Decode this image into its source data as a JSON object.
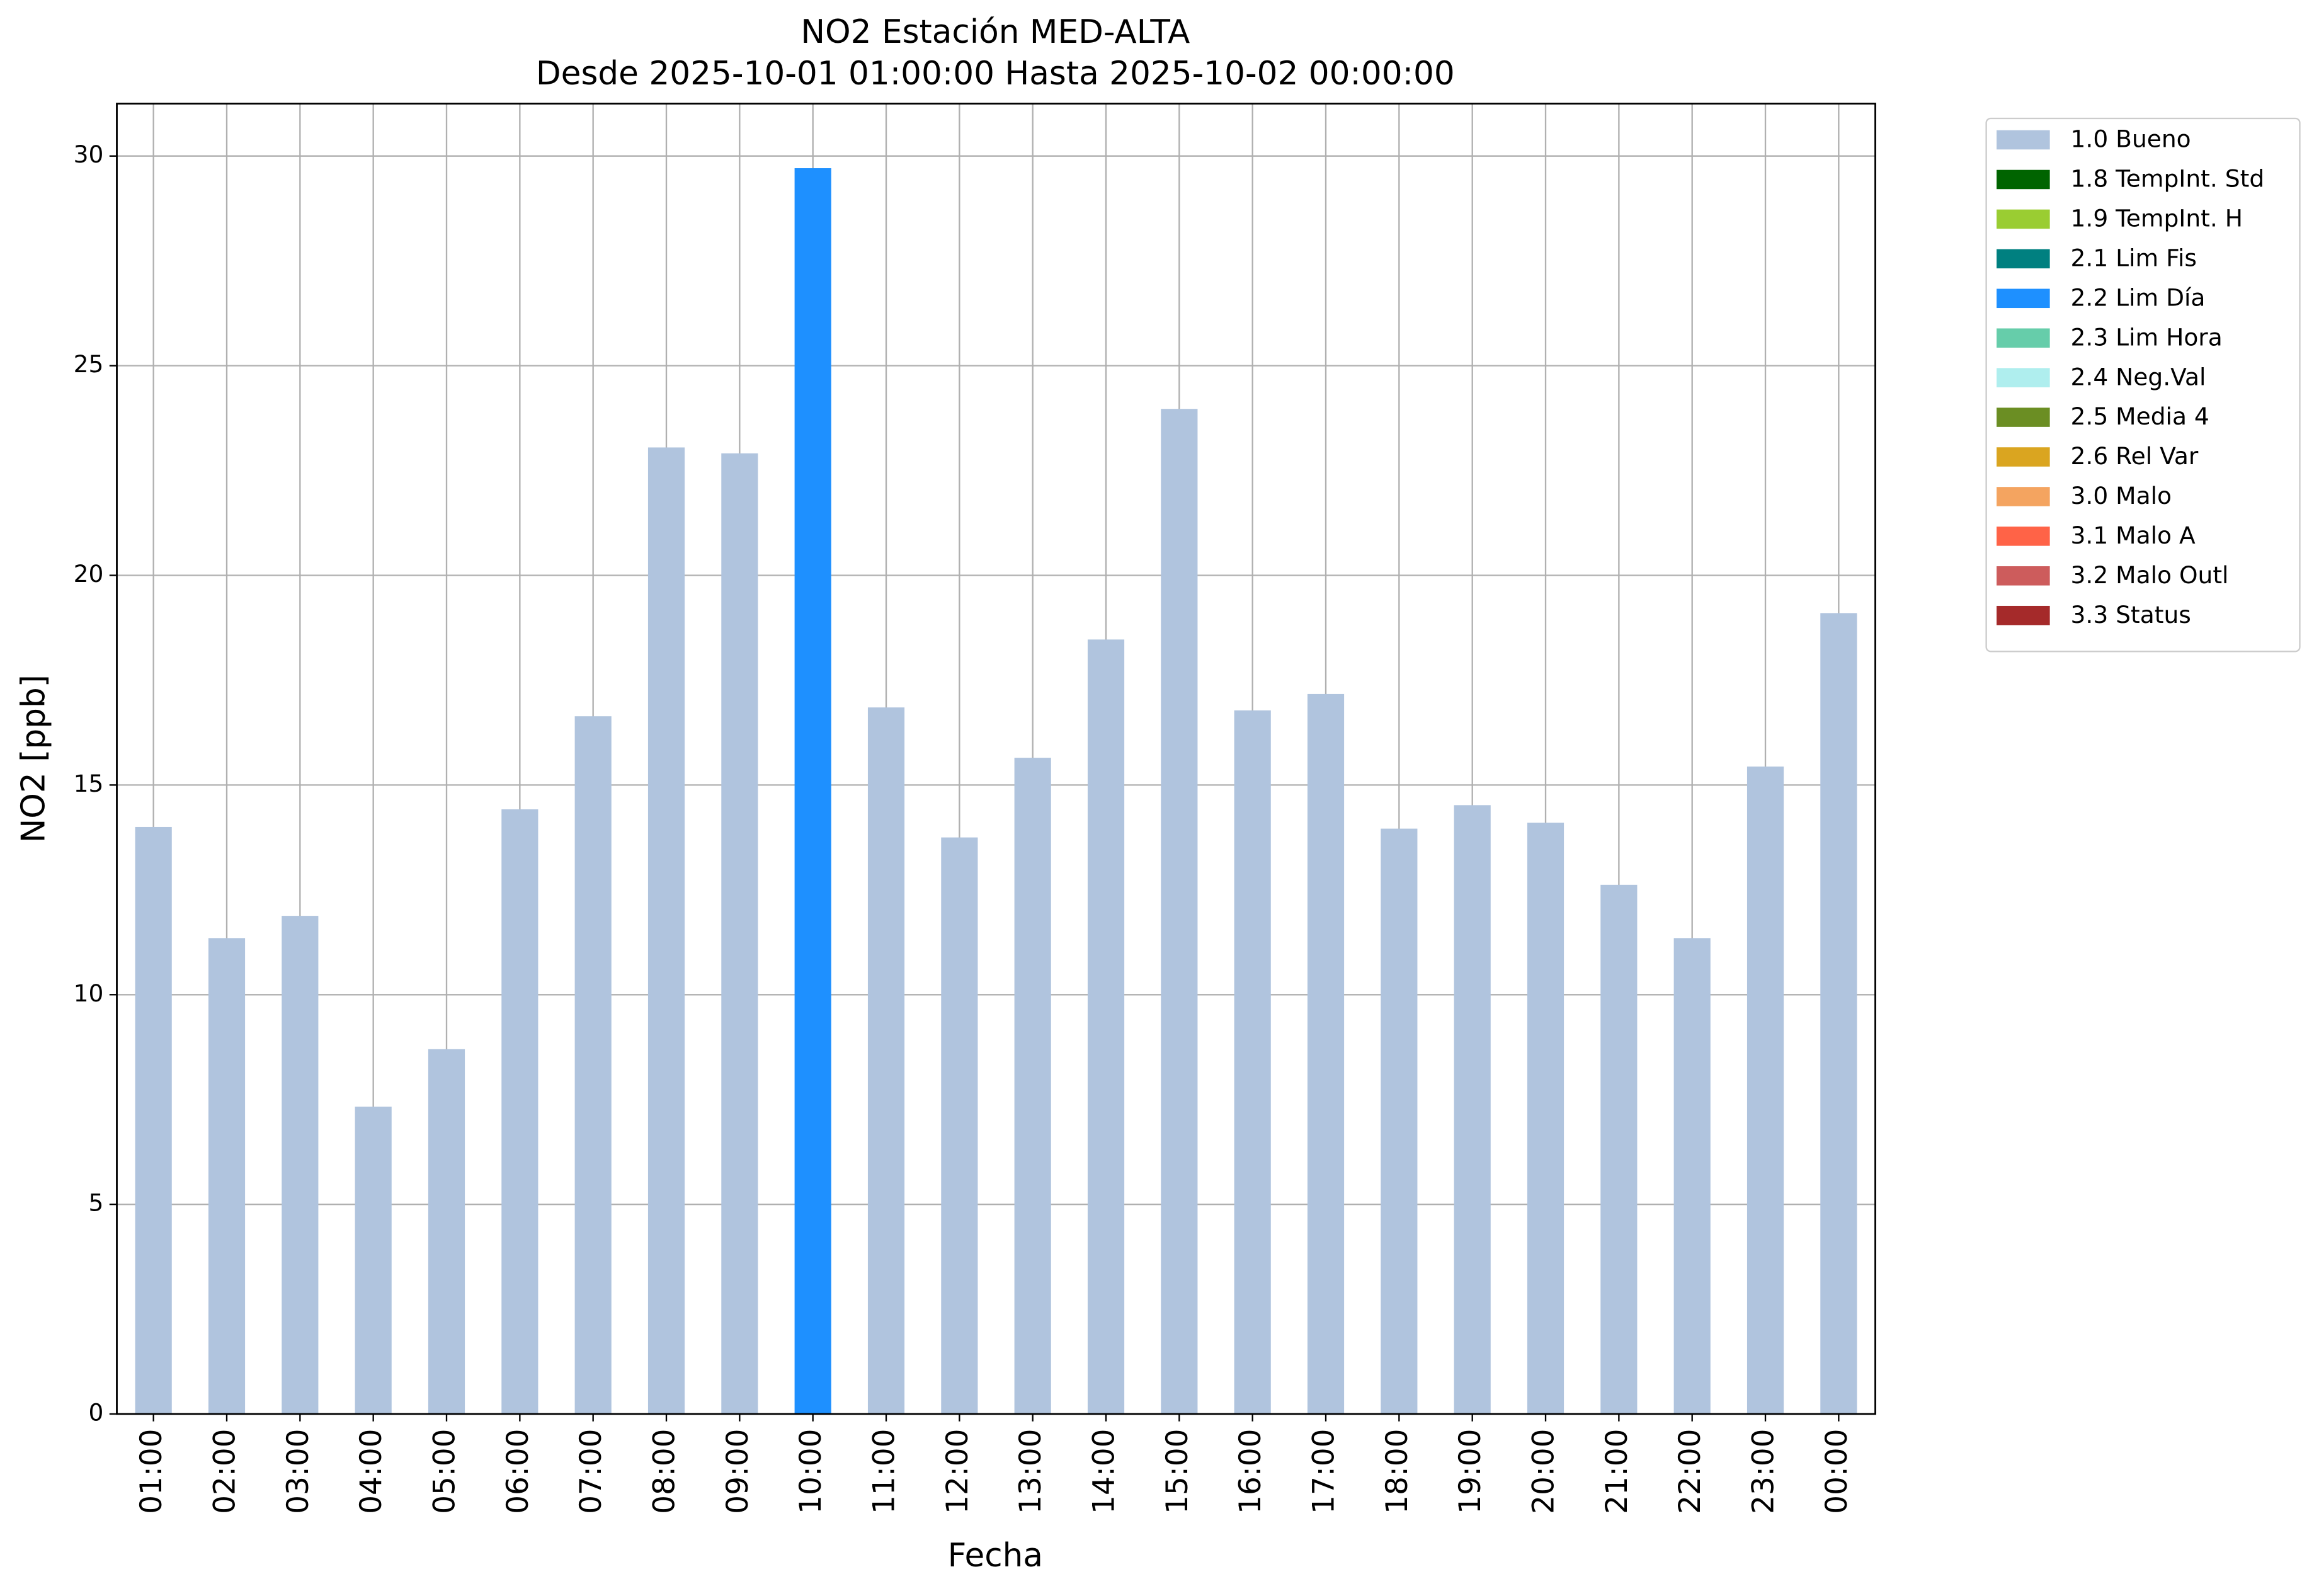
{
  "chart_data": {
    "type": "bar",
    "stacked": true,
    "title": "NO2 Estación MED-ALTA",
    "subtitle": "Desde 2025-10-01 01:00:00 Hasta 2025-10-02 00:00:00",
    "xlabel": "Fecha",
    "ylabel": "NO2 [ppb]",
    "categories": [
      "01:00",
      "02:00",
      "03:00",
      "04:00",
      "05:00",
      "06:00",
      "07:00",
      "08:00",
      "09:00",
      "10:00",
      "11:00",
      "12:00",
      "13:00",
      "14:00",
      "15:00",
      "16:00",
      "17:00",
      "18:00",
      "19:00",
      "20:00",
      "21:00",
      "22:00",
      "23:00",
      "00:00"
    ],
    "series": [
      {
        "name": "1.0 Bueno",
        "color": "#b0c4de",
        "values": [
          14.0,
          11.35,
          11.88,
          7.33,
          8.7,
          14.42,
          16.64,
          23.05,
          22.91,
          null,
          16.85,
          13.75,
          15.65,
          18.47,
          23.97,
          16.78,
          17.17,
          13.96,
          14.52,
          14.1,
          12.62,
          11.35,
          15.44,
          19.1
        ]
      },
      {
        "name": "1.8 TempInt. Std",
        "color": "#006400",
        "values": [
          null,
          null,
          null,
          null,
          null,
          null,
          null,
          null,
          null,
          null,
          null,
          null,
          null,
          null,
          null,
          null,
          null,
          null,
          null,
          null,
          null,
          null,
          null,
          null
        ]
      },
      {
        "name": "1.9 TempInt. H",
        "color": "#9acd32",
        "values": [
          null,
          null,
          null,
          null,
          null,
          null,
          null,
          null,
          null,
          null,
          null,
          null,
          null,
          null,
          null,
          null,
          null,
          null,
          null,
          null,
          null,
          null,
          null,
          null
        ]
      },
      {
        "name": "2.1 Lim Fis",
        "color": "#008080",
        "values": [
          null,
          null,
          null,
          null,
          null,
          null,
          null,
          null,
          null,
          null,
          null,
          null,
          null,
          null,
          null,
          null,
          null,
          null,
          null,
          null,
          null,
          null,
          null,
          null
        ]
      },
      {
        "name": "2.2 Lim Día",
        "color": "#1e90ff",
        "values": [
          null,
          null,
          null,
          null,
          null,
          null,
          null,
          null,
          null,
          29.71,
          null,
          null,
          null,
          null,
          null,
          null,
          null,
          null,
          null,
          null,
          null,
          null,
          null,
          null
        ]
      },
      {
        "name": "2.3 Lim Hora",
        "color": "#66cdaa",
        "values": [
          null,
          null,
          null,
          null,
          null,
          null,
          null,
          null,
          null,
          null,
          null,
          null,
          null,
          null,
          null,
          null,
          null,
          null,
          null,
          null,
          null,
          null,
          null,
          null
        ]
      },
      {
        "name": "2.4 Neg.Val",
        "color": "#afeeee",
        "values": [
          null,
          null,
          null,
          null,
          null,
          null,
          null,
          null,
          null,
          null,
          null,
          null,
          null,
          null,
          null,
          null,
          null,
          null,
          null,
          null,
          null,
          null,
          null,
          null
        ]
      },
      {
        "name": "2.5 Media 4",
        "color": "#6b8e23",
        "values": [
          null,
          null,
          null,
          null,
          null,
          null,
          null,
          null,
          null,
          null,
          null,
          null,
          null,
          null,
          null,
          null,
          null,
          null,
          null,
          null,
          null,
          null,
          null,
          null
        ]
      },
      {
        "name": "2.6 Rel Var",
        "color": "#daa520",
        "values": [
          null,
          null,
          null,
          null,
          null,
          null,
          null,
          null,
          null,
          null,
          null,
          null,
          null,
          null,
          null,
          null,
          null,
          null,
          null,
          null,
          null,
          null,
          null,
          null
        ]
      },
      {
        "name": "3.0 Malo",
        "color": "#f4a460",
        "values": [
          null,
          null,
          null,
          null,
          null,
          null,
          null,
          null,
          null,
          null,
          null,
          null,
          null,
          null,
          null,
          null,
          null,
          null,
          null,
          null,
          null,
          null,
          null,
          null
        ]
      },
      {
        "name": "3.1 Malo A",
        "color": "#ff6347",
        "values": [
          null,
          null,
          null,
          null,
          null,
          null,
          null,
          null,
          null,
          null,
          null,
          null,
          null,
          null,
          null,
          null,
          null,
          null,
          null,
          null,
          null,
          null,
          null,
          null
        ]
      },
      {
        "name": "3.2 Malo Outl",
        "color": "#cd5c5c",
        "values": [
          null,
          null,
          null,
          null,
          null,
          null,
          null,
          null,
          null,
          null,
          null,
          null,
          null,
          null,
          null,
          null,
          null,
          null,
          null,
          null,
          null,
          null,
          null,
          null
        ]
      },
      {
        "name": "3.3 Status",
        "color": "#a52a2a",
        "values": [
          null,
          null,
          null,
          null,
          null,
          null,
          null,
          null,
          null,
          null,
          null,
          null,
          null,
          null,
          null,
          null,
          null,
          null,
          null,
          null,
          null,
          null,
          null,
          null
        ]
      }
    ],
    "ylim": [
      0,
      31.25
    ],
    "yticks": [
      0,
      5,
      10,
      15,
      20,
      25,
      30
    ],
    "grid": true,
    "legend": "outside-right"
  }
}
